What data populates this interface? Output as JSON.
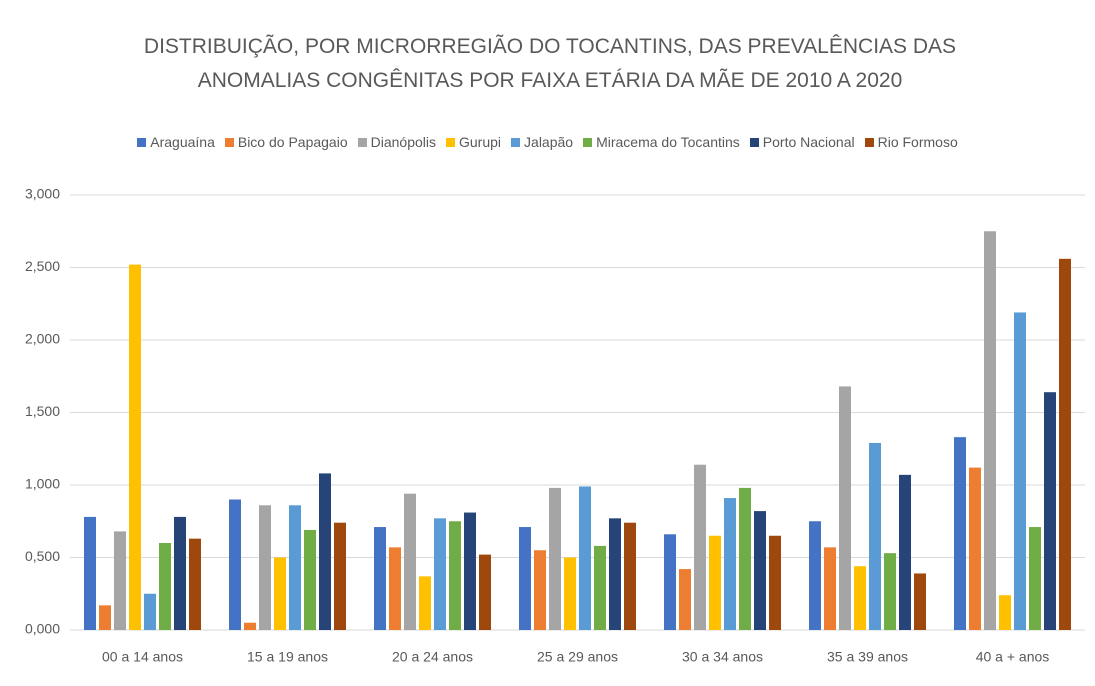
{
  "chart_data": {
    "type": "bar",
    "title": "DISTRIBUIÇÃO, POR MICRORREGIÃO DO TOCANTINS, DAS PREVALÊNCIAS DAS ANOMALIAS CONGÊNITAS POR FAIXA ETÁRIA DA MÃE  DE 2010 A 2020",
    "categories": [
      "00 a 14 anos",
      "15 a 19 anos",
      "20 a 24 anos",
      "25 a 29 anos",
      "30 a 34 anos",
      "35 a 39 anos",
      "40 a + anos"
    ],
    "series": [
      {
        "name": "Araguaína",
        "color": "#4472c4",
        "values": [
          0.78,
          0.9,
          0.71,
          0.71,
          0.66,
          0.75,
          1.33
        ]
      },
      {
        "name": "Bico do Papagaio",
        "color": "#ed7d31",
        "values": [
          0.17,
          0.05,
          0.57,
          0.55,
          0.42,
          0.57,
          1.12
        ]
      },
      {
        "name": "Dianópolis",
        "color": "#a5a5a5",
        "values": [
          0.68,
          0.86,
          0.94,
          0.98,
          1.14,
          1.68,
          2.75
        ]
      },
      {
        "name": "Gurupi",
        "color": "#ffc000",
        "values": [
          2.52,
          0.5,
          0.37,
          0.5,
          0.65,
          0.44,
          0.24
        ]
      },
      {
        "name": "Jalapão",
        "color": "#5b9bd5",
        "values": [
          0.25,
          0.86,
          0.77,
          0.99,
          0.91,
          1.29,
          2.19
        ]
      },
      {
        "name": "Miracema do Tocantins",
        "color": "#70ad47",
        "values": [
          0.6,
          0.69,
          0.75,
          0.58,
          0.98,
          0.53,
          0.71
        ]
      },
      {
        "name": "Porto Nacional",
        "color": "#264478",
        "values": [
          0.78,
          1.08,
          0.81,
          0.77,
          0.82,
          1.07,
          1.64
        ]
      },
      {
        "name": "Rio Formoso",
        "color": "#9e480e",
        "values": [
          0.63,
          0.74,
          0.52,
          0.74,
          0.65,
          0.39,
          2.56
        ]
      }
    ],
    "ylim": [
      0,
      3
    ],
    "yticks": [
      {
        "value": 0,
        "label": "0,000"
      },
      {
        "value": 0.5,
        "label": "0,500"
      },
      {
        "value": 1,
        "label": "1,000"
      },
      {
        "value": 1.5,
        "label": "1,500"
      },
      {
        "value": 2,
        "label": "2,000"
      },
      {
        "value": 2.5,
        "label": "2,500"
      },
      {
        "value": 3,
        "label": "3,000"
      }
    ],
    "grid": true
  }
}
